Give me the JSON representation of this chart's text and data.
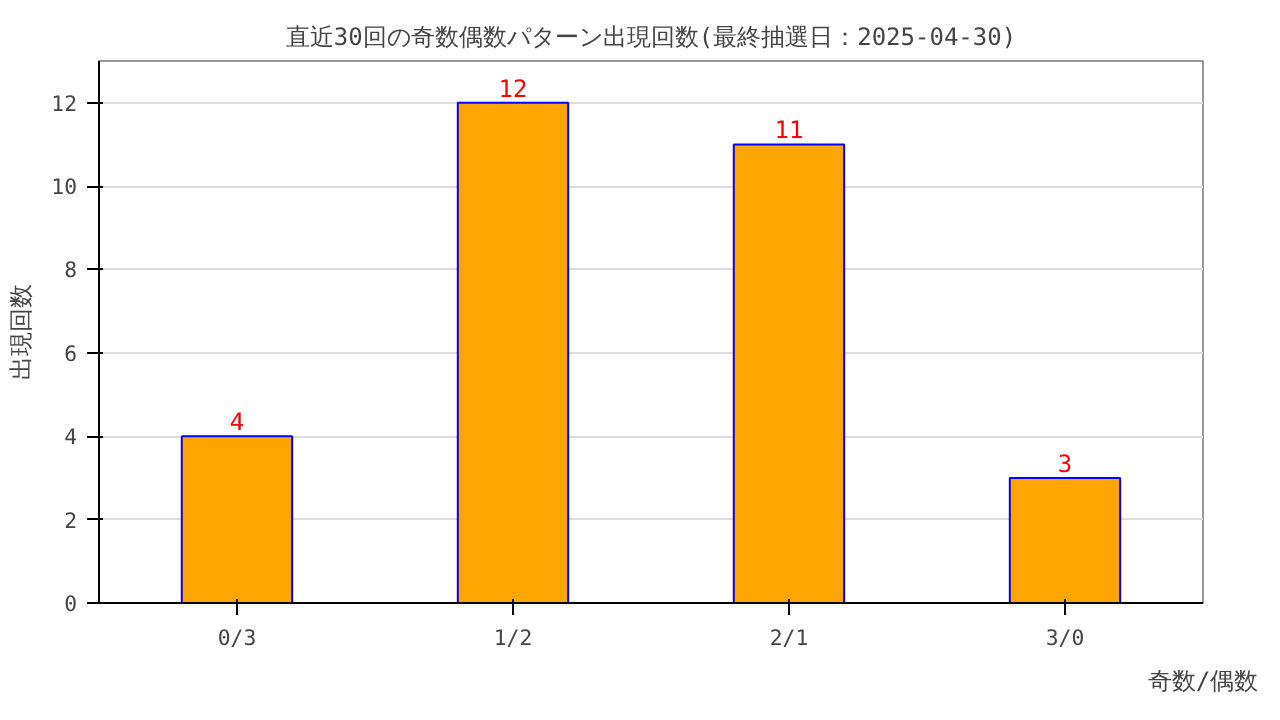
{
  "chart_data": {
    "type": "bar",
    "title": "直近30回の奇数偶数パターン出現回数(最終抽選日：2025-04-30)",
    "xlabel": "奇数/偶数",
    "ylabel": "出現回数",
    "categories": [
      "0/3",
      "1/2",
      "2/1",
      "3/0"
    ],
    "values": [
      4,
      12,
      11,
      3
    ],
    "color": "#ffa500",
    "ylim": [
      0,
      13
    ],
    "yticks": [
      0,
      2,
      4,
      6,
      8,
      10,
      12
    ],
    "grid": "y",
    "data_labels": true
  }
}
